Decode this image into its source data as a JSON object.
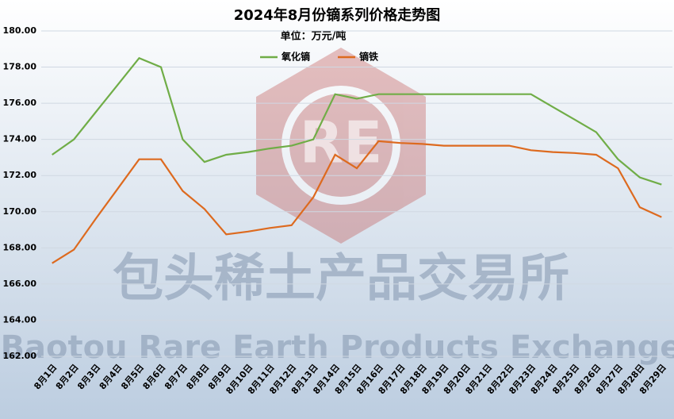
{
  "chart_data": {
    "type": "line",
    "title": "2024年8月份镝系列价格走势图",
    "subtitle": "单位：万元/吨",
    "watermark": [
      "RE",
      "包头稀土产品交易所",
      "Baotou Rare Earth Products Exchange"
    ],
    "categories": [
      "8月1日",
      "8月2日",
      "8月3日",
      "8月4日",
      "8月5日",
      "8月6日",
      "8月7日",
      "8月8日",
      "8月9日",
      "8月10日",
      "8月11日",
      "8月12日",
      "8月13日",
      "8月14日",
      "8月15日",
      "8月16日",
      "8月17日",
      "8月18日",
      "8月19日",
      "8月20日",
      "8月21日",
      "8月22日",
      "8月23日",
      "8月24日",
      "8月25日",
      "8月26日",
      "8月27日",
      "8月28日",
      "8月29日"
    ],
    "series": [
      {
        "name": "氧化镝",
        "color": "#70ad47",
        "values": [
          173.15,
          174.0,
          175.5,
          177.0,
          178.5,
          178.0,
          174.0,
          172.75,
          173.15,
          173.3,
          173.5,
          173.65,
          174.0,
          176.5,
          176.25,
          176.5,
          176.5,
          176.5,
          176.5,
          176.5,
          176.5,
          176.5,
          176.5,
          175.8,
          175.1,
          174.4,
          172.9,
          171.9,
          171.5
        ]
      },
      {
        "name": "镝铁",
        "color": "#dd6a1f",
        "values": [
          167.15,
          167.9,
          169.6,
          171.25,
          172.9,
          172.9,
          171.15,
          170.15,
          168.75,
          168.9,
          169.1,
          169.25,
          170.8,
          173.15,
          172.4,
          173.9,
          173.8,
          173.75,
          173.65,
          173.65,
          173.65,
          173.65,
          173.4,
          173.3,
          173.25,
          173.15,
          172.4,
          170.25,
          169.7
        ]
      }
    ],
    "ylim": [
      162,
      180
    ],
    "yticks": [
      {
        "value": 162,
        "label": "162.00"
      },
      {
        "value": 164,
        "label": "164.00"
      },
      {
        "value": 166,
        "label": "166.00"
      },
      {
        "value": 168,
        "label": "168.00"
      },
      {
        "value": 170,
        "label": "170.00"
      },
      {
        "value": 172,
        "label": "172.00"
      },
      {
        "value": 174,
        "label": "174.00"
      },
      {
        "value": 176,
        "label": "176.00"
      },
      {
        "value": 178,
        "label": "178.00"
      },
      {
        "value": 180,
        "label": "180.00"
      }
    ],
    "grid": true,
    "legend": "top"
  }
}
